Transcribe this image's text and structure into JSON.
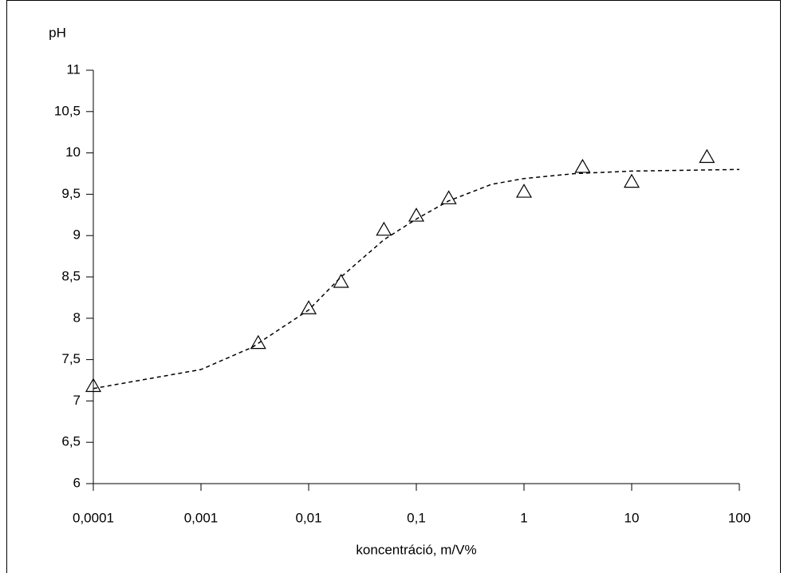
{
  "chart_data": {
    "type": "scatter",
    "y_label": "pH",
    "x_label": "koncentráció, m/V%",
    "x_scale": "log",
    "xlim": [
      0.0001,
      100
    ],
    "ylim": [
      6,
      11
    ],
    "xticks": [
      {
        "value": 0.0001,
        "label": "0,0001"
      },
      {
        "value": 0.001,
        "label": "0,001"
      },
      {
        "value": 0.01,
        "label": "0,01"
      },
      {
        "value": 0.1,
        "label": "0,1"
      },
      1,
      10,
      100
    ],
    "yticks": [
      6,
      {
        "value": 6.5,
        "label": "6,5"
      },
      7,
      {
        "value": 7.5,
        "label": "7,5"
      },
      8,
      {
        "value": 8.5,
        "label": "8,5"
      },
      9,
      {
        "value": 9.5,
        "label": "9,5"
      },
      10,
      {
        "value": 10.5,
        "label": "10,5"
      },
      11
    ],
    "series": [
      {
        "type": "scatter",
        "marker": "triangle",
        "color": "#000000",
        "x": [
          0.0001,
          0.0034,
          0.01,
          0.02,
          0.05,
          0.1,
          0.2,
          1,
          3.5,
          10,
          50
        ],
        "values": [
          7.18,
          7.7,
          8.12,
          8.44,
          9.07,
          9.24,
          9.45,
          9.53,
          9.83,
          9.65,
          9.95
        ]
      },
      {
        "type": "line",
        "dash": true,
        "color": "#000000",
        "x": [
          0.0001,
          0.001,
          0.003,
          0.01,
          0.02,
          0.05,
          0.1,
          0.2,
          0.5,
          1,
          3,
          10,
          100
        ],
        "values": [
          7.15,
          7.38,
          7.65,
          8.1,
          8.5,
          8.95,
          9.2,
          9.42,
          9.62,
          9.69,
          9.75,
          9.78,
          9.8
        ]
      }
    ]
  }
}
